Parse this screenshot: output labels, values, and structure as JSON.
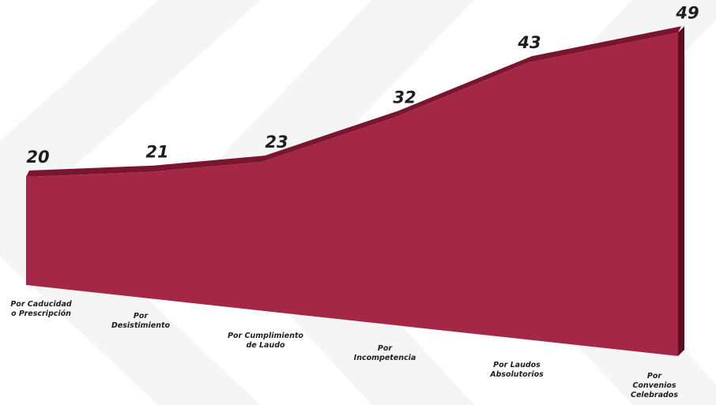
{
  "chart_data": {
    "type": "area",
    "categories": [
      [
        "Por Caducidad",
        "o Prescripción"
      ],
      [
        "Por",
        "Desistimiento"
      ],
      [
        "Por Cumplimiento",
        "de Laudo"
      ],
      [
        "Por",
        "Incompetencia"
      ],
      [
        "Por Laudos",
        "Absolutorios"
      ],
      [
        "Por",
        "Convenios",
        "Celebrados"
      ]
    ],
    "values": [
      20,
      21,
      23,
      32,
      43,
      49
    ],
    "data_labels": [
      "20",
      "21",
      "23",
      "32",
      "43",
      "49"
    ],
    "title": "",
    "xlabel": "",
    "ylabel": "",
    "legend": "none",
    "grid": false,
    "colors": {
      "front": "#a42845",
      "top": "#7a1530",
      "side": "#5e0d22",
      "background_pattern": "#f1f1f1",
      "text": "#1e1e1e"
    }
  }
}
